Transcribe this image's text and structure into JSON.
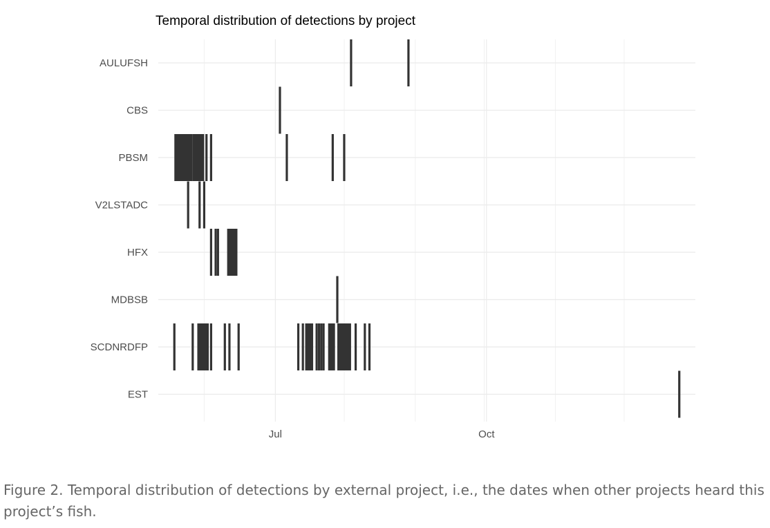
{
  "chart_data": {
    "type": "bar",
    "title": "Temporal distribution of detections by project",
    "xlabel": "",
    "ylabel": "",
    "x_axis_kind": "date",
    "xlim": [
      "2021-05-11",
      "2021-12-31"
    ],
    "x_gridlines": [
      "2021-05-31",
      "2021-07-01",
      "2021-07-31",
      "2021-08-31",
      "2021-09-30",
      "2021-10-01",
      "2021-10-31",
      "2021-11-30"
    ],
    "x_major_ticks": [
      {
        "date": "2021-07-01",
        "label": "Jul"
      },
      {
        "date": "2021-10-01",
        "label": "Oct"
      }
    ],
    "grid": true,
    "legend": "none",
    "bar_color": "#333333",
    "categories": [
      "AULUFSH",
      "CBS",
      "PBSM",
      "V2LSTADC",
      "HFX",
      "MDBSB",
      "SCDNRDFP",
      "EST"
    ],
    "detections": {
      "AULUFSH": [
        "2021-08-03",
        "2021-08-28"
      ],
      "CBS": [
        "2021-07-03"
      ],
      "PBSM": [
        [
          "2021-05-18",
          "2021-05-25"
        ],
        [
          "2021-05-26",
          "2021-05-30"
        ],
        "2021-06-01",
        "2021-06-03",
        "2021-07-06",
        "2021-07-26",
        "2021-07-31"
      ],
      "V2LSTADC": [
        "2021-05-24",
        "2021-05-29",
        "2021-05-31"
      ],
      "HFX": [
        "2021-06-03",
        "2021-06-05",
        "2021-06-06",
        [
          "2021-06-10",
          "2021-06-13"
        ],
        "2021-06-14"
      ],
      "MDBSB": [
        "2021-07-28"
      ],
      "SCDNRDFP": [
        "2021-05-18",
        "2021-05-26",
        [
          "2021-05-28",
          "2021-06-01"
        ],
        "2021-06-03",
        "2021-06-09",
        "2021-06-11",
        "2021-06-15",
        "2021-07-11",
        "2021-07-13",
        [
          "2021-07-14",
          "2021-07-16"
        ],
        "2021-07-17",
        "2021-07-19",
        "2021-07-20",
        "2021-07-21",
        "2021-07-22",
        [
          "2021-07-24",
          "2021-07-26"
        ],
        [
          "2021-07-28",
          "2021-08-02"
        ],
        "2021-08-05",
        "2021-08-09",
        "2021-08-11"
      ],
      "EST": [
        "2021-12-24"
      ]
    }
  },
  "caption": "Figure 2. Temporal distribution of detections by external project, i.e., the dates when other projects heard this project’s fish."
}
